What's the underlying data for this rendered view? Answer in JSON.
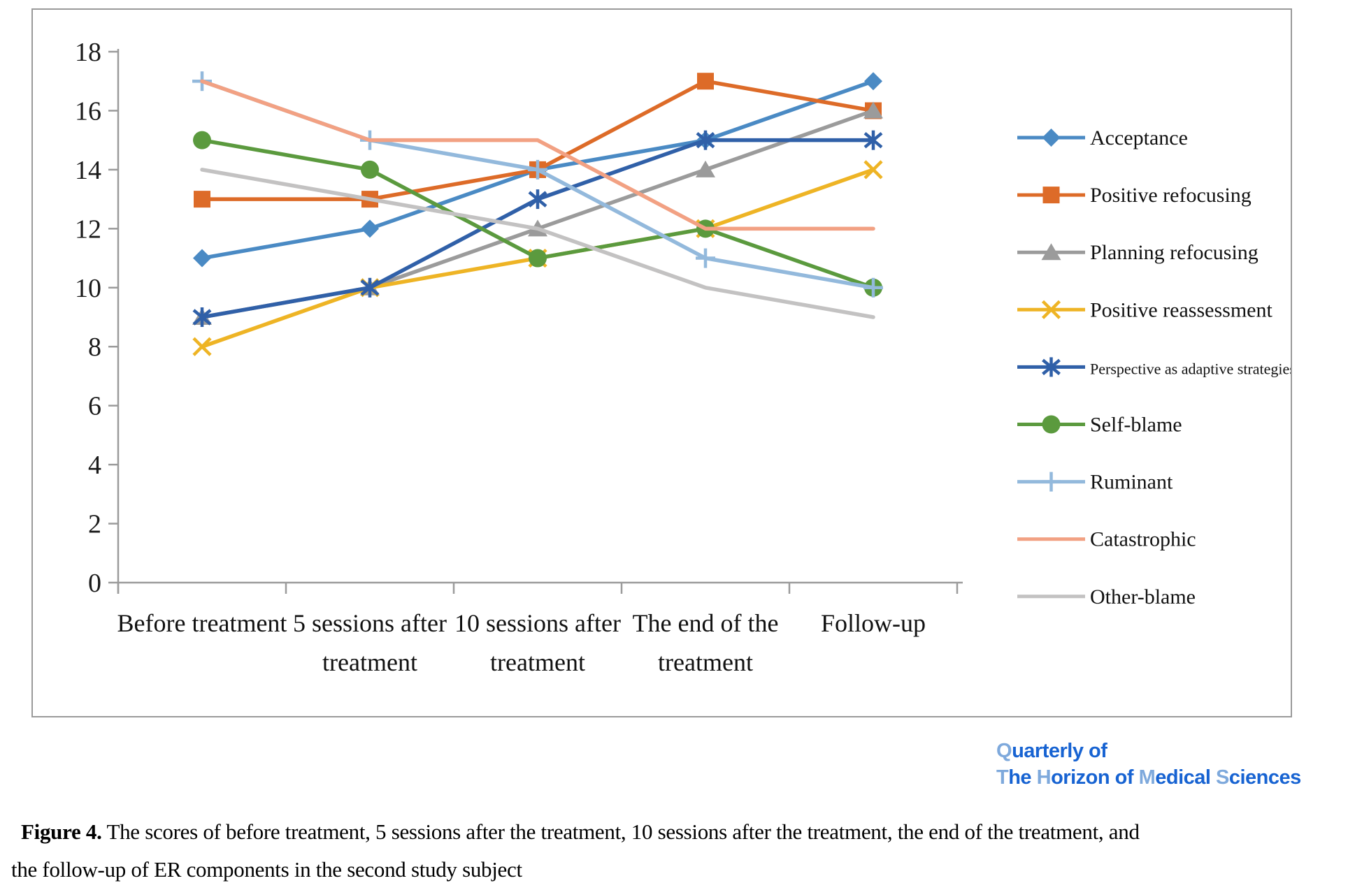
{
  "figure": {
    "caption_bold": "Figure 4.",
    "caption_line1_rest": " The scores of before treatment, 5 sessions after the treatment, 10 sessions after the treatment, the end of the treatment, and",
    "caption_line2": "the follow-up of ER components in the second study subject"
  },
  "logo": {
    "dark_color": "#1763d2",
    "light_color": "#7ea9dc",
    "line1": [
      [
        "Q",
        "light"
      ],
      [
        "uarterly of",
        "dark"
      ]
    ],
    "line2": [
      [
        "T",
        "light"
      ],
      [
        "he ",
        "dark"
      ],
      [
        "H",
        "light"
      ],
      [
        "orizon of ",
        "dark"
      ],
      [
        "M",
        "light"
      ],
      [
        "edical ",
        "dark"
      ],
      [
        "S",
        "light"
      ],
      [
        "ciences",
        "dark"
      ]
    ]
  },
  "chart_data": {
    "type": "line",
    "title": "",
    "xlabel": "",
    "ylabel": "",
    "ylim": [
      0,
      18
    ],
    "ytick_step": 2,
    "grid": false,
    "legend_position": "right",
    "axis_color": "#9b9b9b",
    "categories": [
      "Before treatment",
      "5 sessions after\ntreatment",
      "10 sessions after\ntreatment",
      "The end of the\ntreatment",
      "Follow-up"
    ],
    "series": [
      {
        "name": "Acceptance",
        "marker": "diamond",
        "color": "#4a8ac4",
        "values": [
          11,
          12,
          14,
          15,
          17
        ]
      },
      {
        "name": "Positive refocusing",
        "marker": "square",
        "color": "#dd6b28",
        "values": [
          13,
          13,
          14,
          17,
          16
        ]
      },
      {
        "name": "Planning refocusing",
        "marker": "triangle",
        "color": "#9b9b9b",
        "values": [
          9,
          10,
          12,
          14,
          16
        ]
      },
      {
        "name": "Positive reassessment",
        "marker": "x",
        "color": "#eeb425",
        "values": [
          8,
          10,
          11,
          12,
          14
        ]
      },
      {
        "name": "Perspective as adaptive strategies",
        "marker": "asterisk",
        "color": "#3060a8",
        "values": [
          9,
          10,
          13,
          15,
          15
        ],
        "legend_small": true
      },
      {
        "name": "Self-blame",
        "marker": "circle",
        "color": "#5b9a3e",
        "values": [
          15,
          14,
          11,
          12,
          10
        ]
      },
      {
        "name": "Ruminant",
        "marker": "plus",
        "color": "#93b9dc",
        "values": [
          17,
          15,
          14,
          11,
          10
        ]
      },
      {
        "name": "Catastrophic",
        "marker": "none",
        "color": "#f2a183",
        "values": [
          17,
          15,
          15,
          12,
          12
        ]
      },
      {
        "name": "Other-blame",
        "marker": "none",
        "color": "#c3c2c2",
        "values": [
          14,
          13,
          12,
          10,
          9
        ]
      }
    ]
  }
}
